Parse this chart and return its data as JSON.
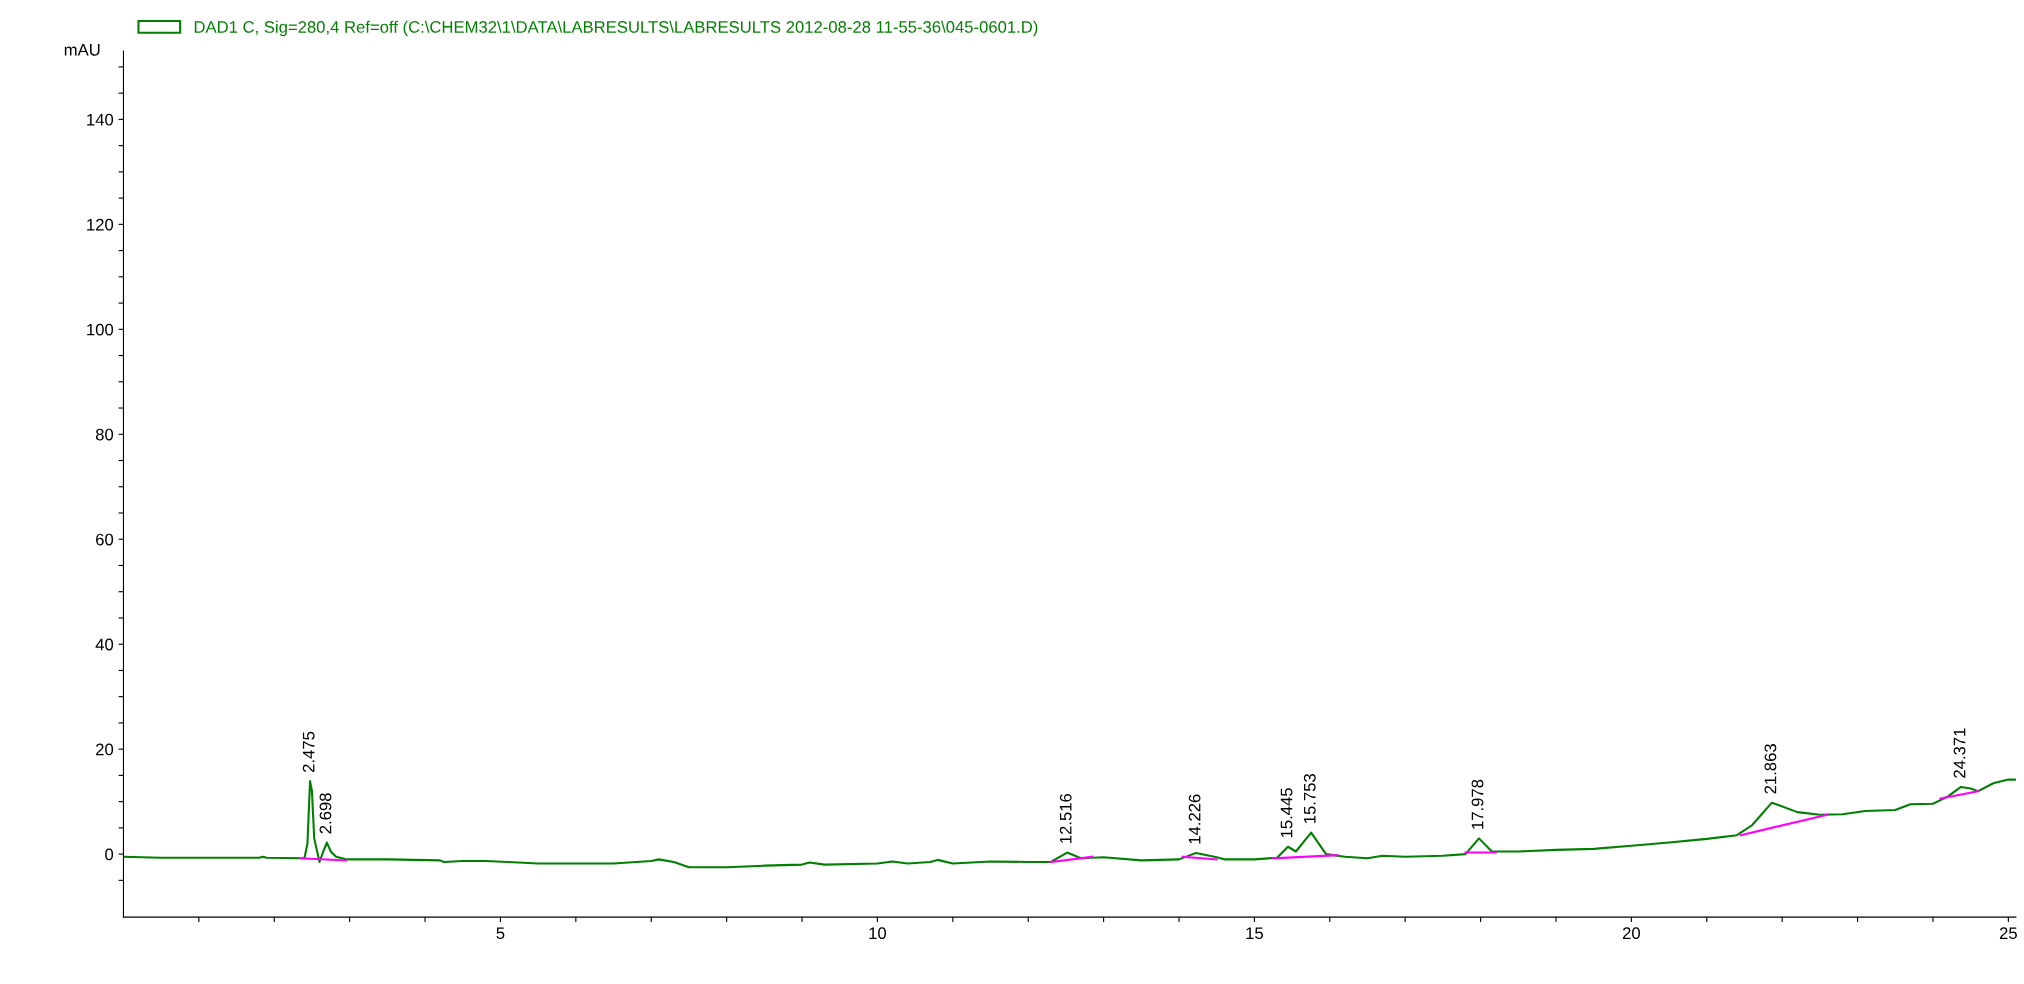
{
  "chart_data": {
    "type": "line",
    "ylabel": "mAU",
    "legend": "top left",
    "grid": false,
    "marker": "none",
    "line_style": "solid",
    "xlim": [
      0,
      25.1
    ],
    "ylim": [
      -12,
      153
    ],
    "xticks": [
      {
        "value": 1,
        "label": null
      },
      {
        "value": 2,
        "label": null
      },
      {
        "value": 3,
        "label": null
      },
      {
        "value": 4,
        "label": null
      },
      5,
      {
        "value": 6,
        "label": null
      },
      {
        "value": 7,
        "label": null
      },
      {
        "value": 8,
        "label": null
      },
      {
        "value": 9,
        "label": null
      },
      10,
      {
        "value": 11,
        "label": null
      },
      {
        "value": 12,
        "label": null
      },
      {
        "value": 13,
        "label": null
      },
      {
        "value": 14,
        "label": null
      },
      15,
      {
        "value": 16,
        "label": null
      },
      {
        "value": 17,
        "label": null
      },
      {
        "value": 18,
        "label": null
      },
      {
        "value": 19,
        "label": null
      },
      20,
      {
        "value": 21,
        "label": null
      },
      {
        "value": 22,
        "label": null
      },
      {
        "value": 23,
        "label": null
      },
      {
        "value": 24,
        "label": null
      },
      25
    ],
    "yticks": [
      {
        "value": -5,
        "label": null
      },
      0,
      {
        "value": 5,
        "label": null
      },
      {
        "value": 10,
        "label": null
      },
      {
        "value": 15,
        "label": null
      },
      20,
      {
        "value": 25,
        "label": null
      },
      {
        "value": 30,
        "label": null
      },
      {
        "value": 35,
        "label": null
      },
      40,
      {
        "value": 45,
        "label": null
      },
      {
        "value": 50,
        "label": null
      },
      {
        "value": 55,
        "label": null
      },
      60,
      {
        "value": 65,
        "label": null
      },
      {
        "value": 70,
        "label": null
      },
      {
        "value": 75,
        "label": null
      },
      80,
      {
        "value": 85,
        "label": null
      },
      {
        "value": 90,
        "label": null
      },
      {
        "value": 95,
        "label": null
      },
      100,
      {
        "value": 105,
        "label": null
      },
      {
        "value": 110,
        "label": null
      },
      {
        "value": 115,
        "label": null
      },
      120,
      {
        "value": 125,
        "label": null
      },
      {
        "value": 130,
        "label": null
      },
      {
        "value": 135,
        "label": null
      },
      140,
      {
        "value": 145,
        "label": null
      },
      {
        "value": 150,
        "label": null
      }
    ],
    "series": [
      {
        "name": "DAD1 C, Sig=280,4 Ref=off (C:\\CHEM32\\1\\DATA\\LABRESULTS\\LABRESULTS 2012-08-28 11-55-36\\045-0601.D)",
        "color": "#008000",
        "x": [
          0,
          0.5,
          1.8,
          1.85,
          1.9,
          2.4,
          2.44,
          2.475,
          2.5,
          2.53,
          2.6,
          2.65,
          2.698,
          2.75,
          2.82,
          2.95,
          3.5,
          4.2,
          4.25,
          4.5,
          4.8,
          5.1,
          5.5,
          6.5,
          7.0,
          7.1,
          7.3,
          7.5,
          8.0,
          8.5,
          9.0,
          9.1,
          9.3,
          10,
          10.2,
          10.4,
          10.7,
          10.8,
          11.0,
          11.5,
          12.0,
          12.3,
          12.516,
          12.7,
          13,
          13.5,
          14.0,
          14.226,
          14.5,
          14.6,
          15.0,
          15.3,
          15.445,
          15.55,
          15.753,
          15.95,
          16.2,
          16.5,
          16.7,
          17.0,
          17.5,
          17.8,
          17.978,
          18.15,
          18.5,
          19,
          19.5,
          20,
          20.5,
          21,
          21.4,
          21.6,
          21.863,
          22.2,
          22.5,
          22.8,
          23.1,
          23.5,
          23.7,
          24.0,
          24.2,
          24.371,
          24.5,
          24.6,
          24.8,
          25.0,
          25.1
        ],
        "values": [
          -0.5,
          -0.7,
          -0.7,
          -0.5,
          -0.7,
          -0.8,
          2,
          13.9,
          12,
          3,
          -1.5,
          0.5,
          2.2,
          0.5,
          -0.5,
          -1,
          -1,
          -1.2,
          -1.5,
          -1.3,
          -1.3,
          -1.5,
          -1.8,
          -1.8,
          -1.3,
          -1.0,
          -1.5,
          -2.5,
          -2.5,
          -2.2,
          -2.0,
          -1.6,
          -2.0,
          -1.8,
          -1.4,
          -1.8,
          -1.5,
          -1.1,
          -1.8,
          -1.4,
          -1.5,
          -1.5,
          0.3,
          -0.8,
          -0.6,
          -1.2,
          -1.0,
          0.2,
          -0.6,
          -1.0,
          -1.0,
          -0.7,
          1.4,
          0.5,
          4.1,
          0.0,
          -0.5,
          -0.8,
          -0.3,
          -0.5,
          -0.3,
          0.0,
          3.0,
          0.5,
          0.5,
          0.8,
          1.0,
          1.6,
          2.2,
          2.9,
          3.6,
          5.5,
          9.8,
          8.0,
          7.5,
          7.6,
          8.2,
          8.4,
          9.5,
          9.6,
          11.0,
          12.8,
          12.5,
          12.0,
          13.5,
          14.2,
          14.2
        ]
      },
      {
        "color": "#ff00ff",
        "x": [
          2.35,
          2.95
        ],
        "values": [
          -0.8,
          -1.2
        ]
      },
      {
        "color": "#ff00ff",
        "x": [
          12.3,
          12.85
        ],
        "values": [
          -1.5,
          -0.5
        ]
      },
      {
        "color": "#ff00ff",
        "x": [
          14.05,
          14.5
        ],
        "values": [
          -0.5,
          -1.0
        ]
      },
      {
        "color": "#ff00ff",
        "x": [
          15.25,
          16.1
        ],
        "values": [
          -0.8,
          -0.2
        ]
      },
      {
        "color": "#ff00ff",
        "x": [
          17.8,
          18.2
        ],
        "values": [
          0.3,
          0.3
        ]
      },
      {
        "color": "#ff00ff",
        "x": [
          21.45,
          22.6
        ],
        "values": [
          3.6,
          7.5
        ]
      },
      {
        "color": "#ff00ff",
        "x": [
          24.1,
          24.6
        ],
        "values": [
          10.6,
          12.0
        ]
      }
    ],
    "annotations": [
      {
        "text": "2.475",
        "x": 2.475,
        "y": 13.9
      },
      {
        "text": "2.698",
        "x": 2.698,
        "y": 2.2
      },
      {
        "text": "12.516",
        "x": 12.516,
        "y": 0.3
      },
      {
        "text": "14.226",
        "x": 14.226,
        "y": 0.2
      },
      {
        "text": "15.445",
        "x": 15.445,
        "y": 1.4
      },
      {
        "text": "15.753",
        "x": 15.753,
        "y": 4.1
      },
      {
        "text": "17.978",
        "x": 17.978,
        "y": 3.0
      },
      {
        "text": "21.863",
        "x": 21.863,
        "y": 9.8
      },
      {
        "text": "24.371",
        "x": 24.371,
        "y": 12.8
      }
    ]
  }
}
